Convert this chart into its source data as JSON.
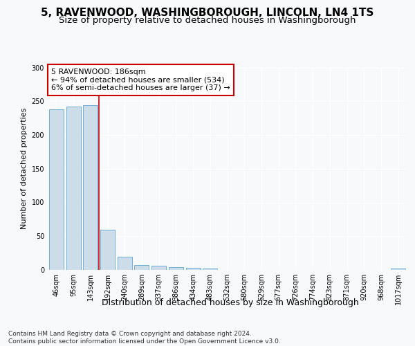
{
  "title": "5, RAVENWOOD, WASHINGBOROUGH, LINCOLN, LN4 1TS",
  "subtitle": "Size of property relative to detached houses in Washingborough",
  "xlabel": "Distribution of detached houses by size in Washingborough",
  "ylabel": "Number of detached properties",
  "categories": [
    "46sqm",
    "95sqm",
    "143sqm",
    "192sqm",
    "240sqm",
    "289sqm",
    "337sqm",
    "386sqm",
    "434sqm",
    "483sqm",
    "532sqm",
    "580sqm",
    "629sqm",
    "677sqm",
    "726sqm",
    "774sqm",
    "823sqm",
    "871sqm",
    "920sqm",
    "968sqm",
    "1017sqm"
  ],
  "values": [
    238,
    242,
    244,
    59,
    20,
    7,
    6,
    4,
    3,
    2,
    0,
    0,
    0,
    0,
    0,
    0,
    0,
    0,
    0,
    0,
    2
  ],
  "bar_color": "#ccdce8",
  "bar_edge_color": "#6aaed6",
  "vline_x_index": 2.5,
  "vline_color": "#cc0000",
  "annotation_text": "5 RAVENWOOD: 186sqm\n← 94% of detached houses are smaller (534)\n6% of semi-detached houses are larger (37) →",
  "annotation_box_color": "white",
  "annotation_box_edge_color": "#cc0000",
  "ylim": [
    0,
    300
  ],
  "yticks": [
    0,
    50,
    100,
    150,
    200,
    250,
    300
  ],
  "footer_text": "Contains HM Land Registry data © Crown copyright and database right 2024.\nContains public sector information licensed under the Open Government Licence v3.0.",
  "bg_color": "#f7f9fb",
  "plot_bg_color": "#f7f9fb",
  "title_fontsize": 11,
  "subtitle_fontsize": 9.5,
  "xlabel_fontsize": 9,
  "ylabel_fontsize": 8,
  "tick_fontsize": 7,
  "footer_fontsize": 6.5,
  "annotation_fontsize": 8
}
